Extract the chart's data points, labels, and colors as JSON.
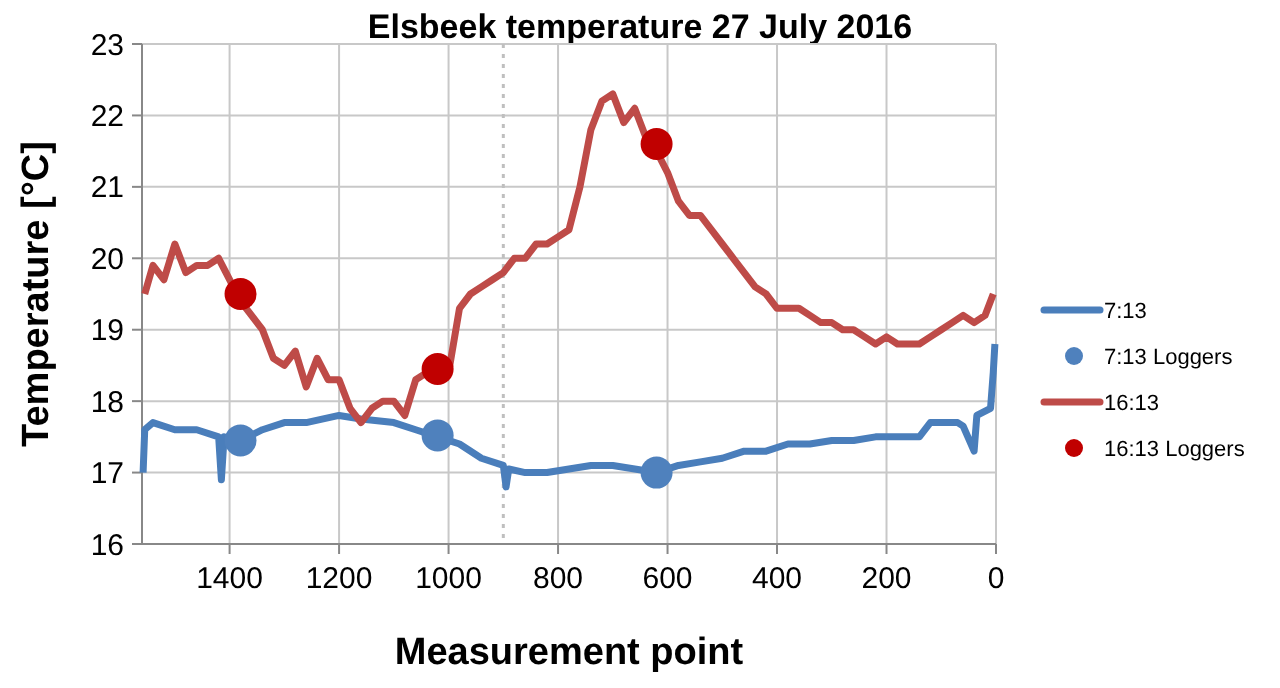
{
  "chart_data": {
    "type": "line",
    "title": "Elsbeek temperature 27 July 2016",
    "xlabel": "Measurement point",
    "ylabel": "Temperature [°C]",
    "xlim": [
      1560,
      0
    ],
    "xticks": [
      1400,
      1200,
      1000,
      800,
      600,
      400,
      200,
      0
    ],
    "ylim": [
      16,
      23
    ],
    "yticks": [
      16,
      17,
      18,
      19,
      20,
      21,
      22,
      23
    ],
    "grid": true,
    "legend": "right",
    "ref_lines": [
      {
        "axis": "x",
        "value": 900,
        "color": "#bfbfbf",
        "line_style": "dotted"
      }
    ],
    "series": [
      {
        "name": "7:13",
        "color": "#4a7ebb",
        "marker": "none",
        "x": [
          1558,
          1555,
          1540,
          1500,
          1460,
          1420,
          1415,
          1410,
          1380,
          1340,
          1300,
          1260,
          1200,
          1160,
          1100,
          1060,
          1020,
          980,
          940,
          900,
          895,
          890,
          860,
          820,
          780,
          740,
          700,
          660,
          620,
          580,
          540,
          500,
          460,
          420,
          380,
          340,
          300,
          260,
          220,
          180,
          140,
          120,
          100,
          70,
          60,
          40,
          35,
          10,
          5,
          2
        ],
        "values": [
          17.0,
          17.6,
          17.7,
          17.6,
          17.6,
          17.5,
          16.9,
          17.5,
          17.45,
          17.6,
          17.7,
          17.7,
          17.8,
          17.75,
          17.7,
          17.6,
          17.5,
          17.4,
          17.2,
          17.1,
          16.8,
          17.05,
          17.0,
          17.0,
          17.05,
          17.1,
          17.1,
          17.05,
          17.0,
          17.1,
          17.15,
          17.2,
          17.3,
          17.3,
          17.4,
          17.4,
          17.45,
          17.45,
          17.5,
          17.5,
          17.5,
          17.7,
          17.7,
          17.7,
          17.65,
          17.3,
          17.8,
          17.9,
          18.4,
          18.8
        ]
      },
      {
        "name": "7:13 Loggers",
        "type": "scatter",
        "color": "#4f81bd",
        "marker": "circle",
        "x": [
          1380,
          1020,
          620
        ],
        "values": [
          17.45,
          17.52,
          17.0
        ]
      },
      {
        "name": "16:13",
        "color": "#be4b48",
        "marker": "none",
        "x": [
          1555,
          1540,
          1520,
          1500,
          1480,
          1460,
          1440,
          1420,
          1400,
          1380,
          1360,
          1340,
          1320,
          1300,
          1280,
          1260,
          1240,
          1220,
          1200,
          1180,
          1160,
          1140,
          1120,
          1100,
          1080,
          1060,
          1040,
          1020,
          1000,
          980,
          960,
          940,
          920,
          900,
          880,
          860,
          840,
          820,
          800,
          780,
          760,
          740,
          720,
          700,
          680,
          660,
          640,
          620,
          600,
          580,
          560,
          540,
          520,
          500,
          480,
          460,
          440,
          420,
          400,
          380,
          360,
          340,
          320,
          300,
          280,
          260,
          240,
          220,
          200,
          180,
          160,
          140,
          120,
          100,
          80,
          60,
          40,
          20,
          5
        ],
        "values": [
          19.5,
          19.9,
          19.7,
          20.2,
          19.8,
          19.9,
          19.9,
          20.0,
          19.7,
          19.4,
          19.2,
          19.0,
          18.6,
          18.5,
          18.7,
          18.2,
          18.6,
          18.3,
          18.3,
          17.9,
          17.7,
          17.9,
          18.0,
          18.0,
          17.8,
          18.3,
          18.4,
          18.4,
          18.4,
          19.3,
          19.5,
          19.6,
          19.7,
          19.8,
          20.0,
          20.0,
          20.2,
          20.2,
          20.3,
          20.4,
          21.0,
          21.8,
          22.2,
          22.3,
          21.9,
          22.1,
          21.7,
          21.5,
          21.2,
          20.8,
          20.6,
          20.6,
          20.4,
          20.2,
          20.0,
          19.8,
          19.6,
          19.5,
          19.3,
          19.3,
          19.3,
          19.2,
          19.1,
          19.1,
          19.0,
          19.0,
          18.9,
          18.8,
          18.9,
          18.8,
          18.8,
          18.8,
          18.9,
          19.0,
          19.1,
          19.2,
          19.1,
          19.2,
          19.5
        ]
      },
      {
        "name": "16:13 Loggers",
        "type": "scatter",
        "color": "#c00000",
        "marker": "circle",
        "x": [
          1380,
          1020,
          620
        ],
        "values": [
          19.5,
          18.45,
          21.6
        ]
      }
    ]
  }
}
